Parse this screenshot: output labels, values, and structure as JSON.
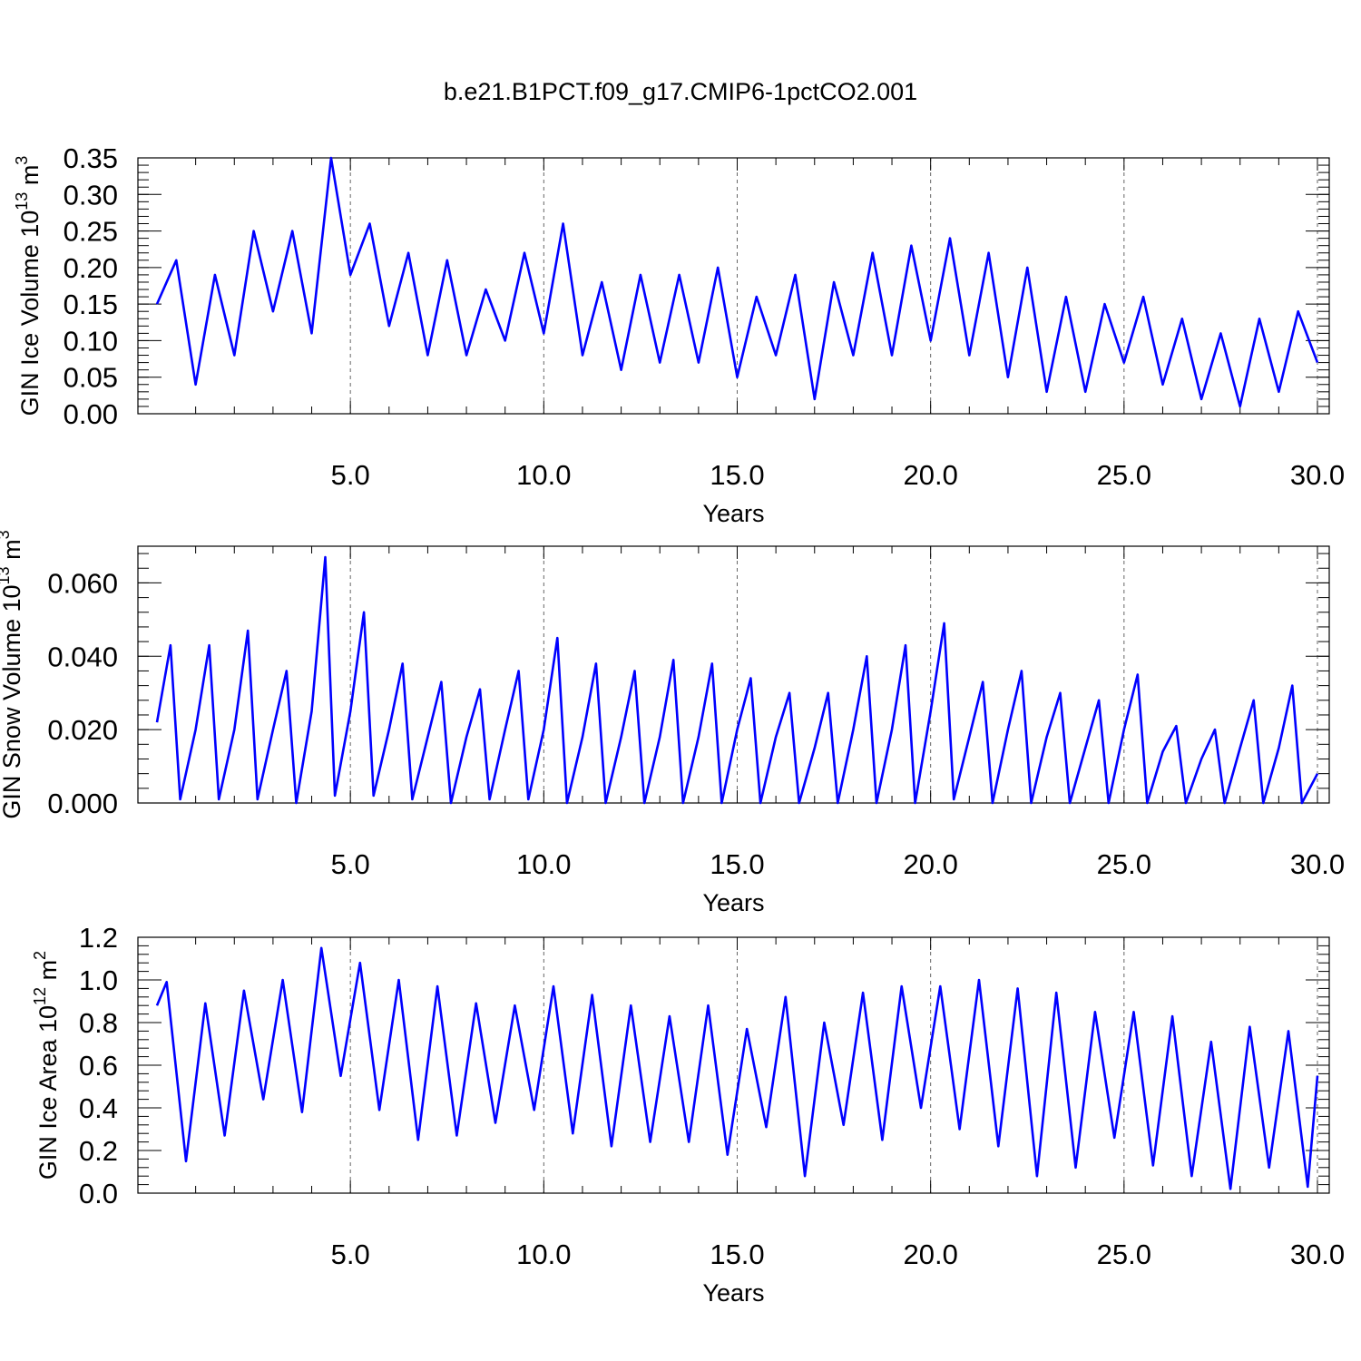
{
  "title": "b.e21.B1PCT.f09_g17.CMIP6-1pctCO2.001",
  "series_color": "#0000ff",
  "chart_data": [
    {
      "type": "line",
      "ylabel": "GIN Ice Volume 10^13 m^3",
      "ylabel_parts": {
        "base": "GIN Ice Volume 10",
        "exp1": "13",
        "mid": " m",
        "exp2": "3"
      },
      "xlabel": "Years",
      "xlim": [
        0,
        30
      ],
      "ylim": [
        0,
        0.35
      ],
      "xticks": [
        "5.0",
        "10.0",
        "15.0",
        "20.0",
        "25.0",
        "30.0"
      ],
      "yticks": [
        "0.00",
        "0.05",
        "0.10",
        "0.15",
        "0.20",
        "0.25",
        "0.30",
        "0.35"
      ],
      "grid": "dashed vertical at x ticks",
      "series": [
        {
          "name": "",
          "x": [
            0.0,
            0.5,
            1.0,
            1.5,
            2.0,
            2.5,
            3.0,
            3.5,
            4.0,
            4.5,
            5.0,
            5.5,
            6.0,
            6.5,
            7.0,
            7.5,
            8.0,
            8.5,
            9.0,
            9.5,
            10.0,
            10.5,
            11.0,
            11.5,
            12.0,
            12.5,
            13.0,
            13.5,
            14.0,
            14.5,
            15.0,
            15.5,
            16.0,
            16.5,
            17.0,
            17.5,
            18.0,
            18.5,
            19.0,
            19.5,
            20.0,
            20.5,
            21.0,
            21.5,
            22.0,
            22.5,
            23.0,
            23.5,
            24.0,
            24.5,
            25.0,
            25.5,
            26.0,
            26.5,
            27.0,
            27.5,
            28.0,
            28.5,
            29.0,
            29.5,
            30.0
          ],
          "values": [
            0.15,
            0.21,
            0.04,
            0.19,
            0.08,
            0.25,
            0.14,
            0.25,
            0.11,
            0.35,
            0.19,
            0.26,
            0.12,
            0.22,
            0.08,
            0.21,
            0.08,
            0.17,
            0.1,
            0.22,
            0.11,
            0.26,
            0.08,
            0.18,
            0.06,
            0.19,
            0.07,
            0.19,
            0.07,
            0.2,
            0.05,
            0.16,
            0.08,
            0.19,
            0.02,
            0.18,
            0.08,
            0.22,
            0.08,
            0.23,
            0.1,
            0.24,
            0.08,
            0.22,
            0.05,
            0.2,
            0.03,
            0.16,
            0.03,
            0.15,
            0.07,
            0.16,
            0.04,
            0.13,
            0.02,
            0.11,
            0.01,
            0.13,
            0.03,
            0.14,
            0.07
          ]
        }
      ]
    },
    {
      "type": "line",
      "ylabel": "GIN Snow Volume 10^13 m^3",
      "ylabel_parts": {
        "base": "GIN Snow Volume 10",
        "exp1": "13",
        "mid": " m",
        "exp2": "3"
      },
      "xlabel": "Years",
      "xlim": [
        0,
        30
      ],
      "ylim": [
        0,
        0.07
      ],
      "xticks": [
        "5.0",
        "10.0",
        "15.0",
        "20.0",
        "25.0",
        "30.0"
      ],
      "yticks": [
        "0.000",
        "0.020",
        "0.040",
        "0.060"
      ],
      "grid": "dashed vertical at x ticks",
      "series": [
        {
          "name": "",
          "x": [
            0.0,
            0.35,
            0.6,
            1.0,
            1.35,
            1.6,
            2.0,
            2.35,
            2.6,
            3.0,
            3.35,
            3.6,
            4.0,
            4.35,
            4.6,
            5.0,
            5.35,
            5.6,
            6.0,
            6.35,
            6.6,
            7.0,
            7.35,
            7.6,
            8.0,
            8.35,
            8.6,
            9.0,
            9.35,
            9.6,
            10.0,
            10.35,
            10.6,
            11.0,
            11.35,
            11.6,
            12.0,
            12.35,
            12.6,
            13.0,
            13.35,
            13.6,
            14.0,
            14.35,
            14.6,
            15.0,
            15.35,
            15.6,
            16.0,
            16.35,
            16.6,
            17.0,
            17.35,
            17.6,
            18.0,
            18.35,
            18.6,
            19.0,
            19.35,
            19.6,
            20.0,
            20.35,
            20.6,
            21.0,
            21.35,
            21.6,
            22.0,
            22.35,
            22.6,
            23.0,
            23.35,
            23.6,
            24.0,
            24.35,
            24.6,
            25.0,
            25.35,
            25.6,
            26.0,
            26.35,
            26.6,
            27.0,
            27.35,
            27.6,
            28.0,
            28.35,
            28.6,
            29.0,
            29.35,
            29.6,
            30.0
          ],
          "values": [
            0.022,
            0.043,
            0.001,
            0.02,
            0.043,
            0.001,
            0.02,
            0.047,
            0.001,
            0.02,
            0.036,
            0.0,
            0.025,
            0.067,
            0.002,
            0.025,
            0.052,
            0.002,
            0.02,
            0.038,
            0.001,
            0.018,
            0.033,
            0.0,
            0.018,
            0.031,
            0.001,
            0.02,
            0.036,
            0.001,
            0.02,
            0.045,
            0.0,
            0.018,
            0.038,
            0.0,
            0.018,
            0.036,
            0.0,
            0.018,
            0.039,
            0.0,
            0.018,
            0.038,
            0.0,
            0.02,
            0.034,
            0.0,
            0.018,
            0.03,
            0.0,
            0.015,
            0.03,
            0.0,
            0.02,
            0.04,
            0.0,
            0.02,
            0.043,
            0.0,
            0.025,
            0.049,
            0.001,
            0.018,
            0.033,
            0.0,
            0.02,
            0.036,
            0.0,
            0.018,
            0.03,
            0.0,
            0.015,
            0.028,
            0.0,
            0.02,
            0.035,
            0.0,
            0.014,
            0.021,
            0.0,
            0.012,
            0.02,
            0.0,
            0.015,
            0.028,
            0.0,
            0.015,
            0.032,
            0.0,
            0.008
          ]
        }
      ]
    },
    {
      "type": "line",
      "ylabel": "GIN Ice Area 10^12 m^2",
      "ylabel_parts": {
        "base": "GIN Ice Area 10",
        "exp1": "12",
        "mid": " m",
        "exp2": "2"
      },
      "xlabel": "Years",
      "xlim": [
        0,
        30
      ],
      "ylim": [
        0,
        1.2
      ],
      "xticks": [
        "5.0",
        "10.0",
        "15.0",
        "20.0",
        "25.0",
        "30.0"
      ],
      "yticks": [
        "0.0",
        "0.2",
        "0.4",
        "0.6",
        "0.8",
        "1.0",
        "1.2"
      ],
      "grid": "dashed vertical at x ticks",
      "series": [
        {
          "name": "",
          "x": [
            0.0,
            0.25,
            0.75,
            1.25,
            1.75,
            2.25,
            2.75,
            3.25,
            3.75,
            4.25,
            4.75,
            5.25,
            5.75,
            6.25,
            6.75,
            7.25,
            7.75,
            8.25,
            8.75,
            9.25,
            9.75,
            10.25,
            10.75,
            11.25,
            11.75,
            12.25,
            12.75,
            13.25,
            13.75,
            14.25,
            14.75,
            15.25,
            15.75,
            16.25,
            16.75,
            17.25,
            17.75,
            18.25,
            18.75,
            19.25,
            19.75,
            20.25,
            20.75,
            21.25,
            21.75,
            22.25,
            22.75,
            23.25,
            23.75,
            24.25,
            24.75,
            25.25,
            25.75,
            26.25,
            26.75,
            27.25,
            27.75,
            28.25,
            28.75,
            29.25,
            29.75,
            30.0
          ],
          "values": [
            0.88,
            0.99,
            0.15,
            0.89,
            0.27,
            0.95,
            0.44,
            1.0,
            0.38,
            1.15,
            0.55,
            1.08,
            0.39,
            1.0,
            0.25,
            0.97,
            0.27,
            0.89,
            0.33,
            0.88,
            0.39,
            0.97,
            0.28,
            0.93,
            0.22,
            0.88,
            0.24,
            0.83,
            0.24,
            0.88,
            0.18,
            0.77,
            0.31,
            0.92,
            0.08,
            0.8,
            0.32,
            0.94,
            0.25,
            0.97,
            0.4,
            0.97,
            0.3,
            1.0,
            0.22,
            0.96,
            0.08,
            0.94,
            0.12,
            0.85,
            0.26,
            0.85,
            0.13,
            0.83,
            0.08,
            0.71,
            0.02,
            0.78,
            0.12,
            0.76,
            0.03,
            0.55
          ]
        }
      ]
    }
  ]
}
